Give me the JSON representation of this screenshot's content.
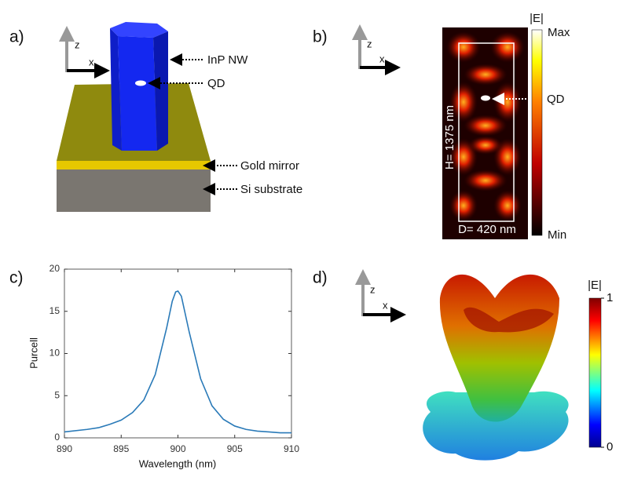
{
  "panels": {
    "a": {
      "label": "a)",
      "axis_z": "z",
      "axis_x": "x",
      "nanowire": "InP NW",
      "dot": "QD",
      "mirror": "Gold mirror",
      "substrate": "Si substrate"
    },
    "b": {
      "label": "b)",
      "axis_z": "z",
      "axis_x": "x",
      "colorbar_title": "|E|",
      "colorbar_max": "Max",
      "colorbar_min": "Min",
      "dot": "QD",
      "height": "H= 1375 nm",
      "diameter": "D= 420 nm"
    },
    "d": {
      "label": "d)",
      "axis_z": "z",
      "axis_x": "x",
      "colorbar_title": "|E|",
      "colorbar_lim": [
        0,
        1
      ],
      "colorbar_ticks": [
        0,
        1
      ]
    }
  },
  "chart_data": {
    "type": "line",
    "label": "c)",
    "x_label": "Wavelength (nm)",
    "y_label": "Purcell",
    "x": [
      890,
      892,
      893,
      894,
      895,
      896,
      897,
      898,
      899,
      899.5,
      899.8,
      900,
      900.3,
      901,
      902,
      903,
      904,
      905,
      906,
      907,
      908,
      909,
      910
    ],
    "values": [
      0.7,
      1.0,
      1.2,
      1.6,
      2.1,
      3.0,
      4.5,
      7.5,
      13.0,
      16.2,
      17.3,
      17.4,
      16.8,
      12.5,
      7.0,
      3.8,
      2.2,
      1.4,
      1.0,
      0.8,
      0.7,
      0.6,
      0.6
    ],
    "color": "#2a7ab8",
    "xlim": [
      890,
      910
    ],
    "xticks": [
      890,
      895,
      900,
      905,
      910
    ],
    "ylim": [
      0,
      20
    ],
    "yticks": [
      0,
      5,
      10,
      15,
      20
    ]
  }
}
